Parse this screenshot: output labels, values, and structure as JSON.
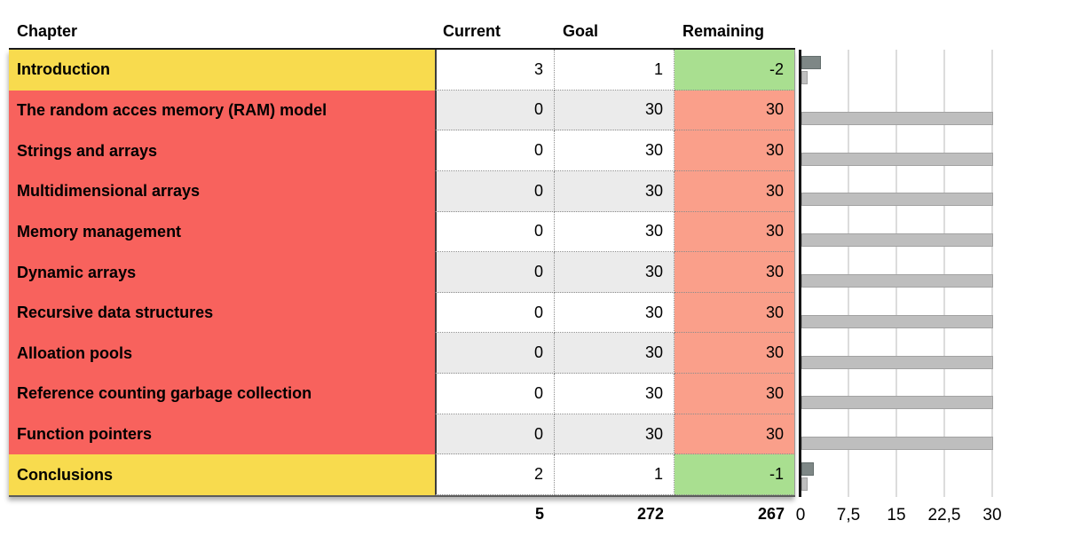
{
  "table": {
    "headers": {
      "chapter": "Chapter",
      "current": "Current",
      "goal": "Goal",
      "remaining": "Remaining"
    },
    "rows": [
      {
        "chapter": "Introduction",
        "current": "3",
        "goal": "1",
        "remaining": "-2"
      },
      {
        "chapter": "The random acces memory (RAM) model",
        "current": "0",
        "goal": "30",
        "remaining": "30"
      },
      {
        "chapter": "Strings and arrays",
        "current": "0",
        "goal": "30",
        "remaining": "30"
      },
      {
        "chapter": "Multidimensional arrays",
        "current": "0",
        "goal": "30",
        "remaining": "30"
      },
      {
        "chapter": "Memory management",
        "current": "0",
        "goal": "30",
        "remaining": "30"
      },
      {
        "chapter": "Dynamic arrays",
        "current": "0",
        "goal": "30",
        "remaining": "30"
      },
      {
        "chapter": "Recursive data structures",
        "current": "0",
        "goal": "30",
        "remaining": "30"
      },
      {
        "chapter": "Alloation pools",
        "current": "0",
        "goal": "30",
        "remaining": "30"
      },
      {
        "chapter": "Reference counting garbage collection",
        "current": "0",
        "goal": "30",
        "remaining": "30"
      },
      {
        "chapter": "Function pointers",
        "current": "0",
        "goal": "30",
        "remaining": "30"
      },
      {
        "chapter": "Conclusions",
        "current": "2",
        "goal": "1",
        "remaining": "-1"
      }
    ],
    "totals": {
      "current": "5",
      "goal": "272",
      "remaining": "267"
    }
  },
  "chart_data": {
    "type": "bar",
    "orientation": "horizontal",
    "categories": [
      "Introduction",
      "The random acces memory (RAM) model",
      "Strings and arrays",
      "Multidimensional arrays",
      "Memory management",
      "Dynamic arrays",
      "Recursive data structures",
      "Alloation pools",
      "Reference counting garbage collection",
      "Function pointers",
      "Conclusions"
    ],
    "series": [
      {
        "name": "Current",
        "values": [
          3,
          0,
          0,
          0,
          0,
          0,
          0,
          0,
          0,
          0,
          2
        ]
      },
      {
        "name": "Goal",
        "values": [
          1,
          30,
          30,
          30,
          30,
          30,
          30,
          30,
          30,
          30,
          1
        ]
      }
    ],
    "xlim": [
      0,
      30
    ],
    "xticks": [
      "0",
      "7,5",
      "15",
      "22,5",
      "30"
    ],
    "grid": true,
    "legend": "none"
  },
  "colors": {
    "milestone_row": "#F8DB4E",
    "pending_row": "#F8625D",
    "remaining_good": "#A9DF90",
    "remaining_bad": "#FA9F8A",
    "alt_row": "#EBEBEB",
    "current_bar": "#7E8786",
    "goal_bar": "#BEBEBE"
  }
}
